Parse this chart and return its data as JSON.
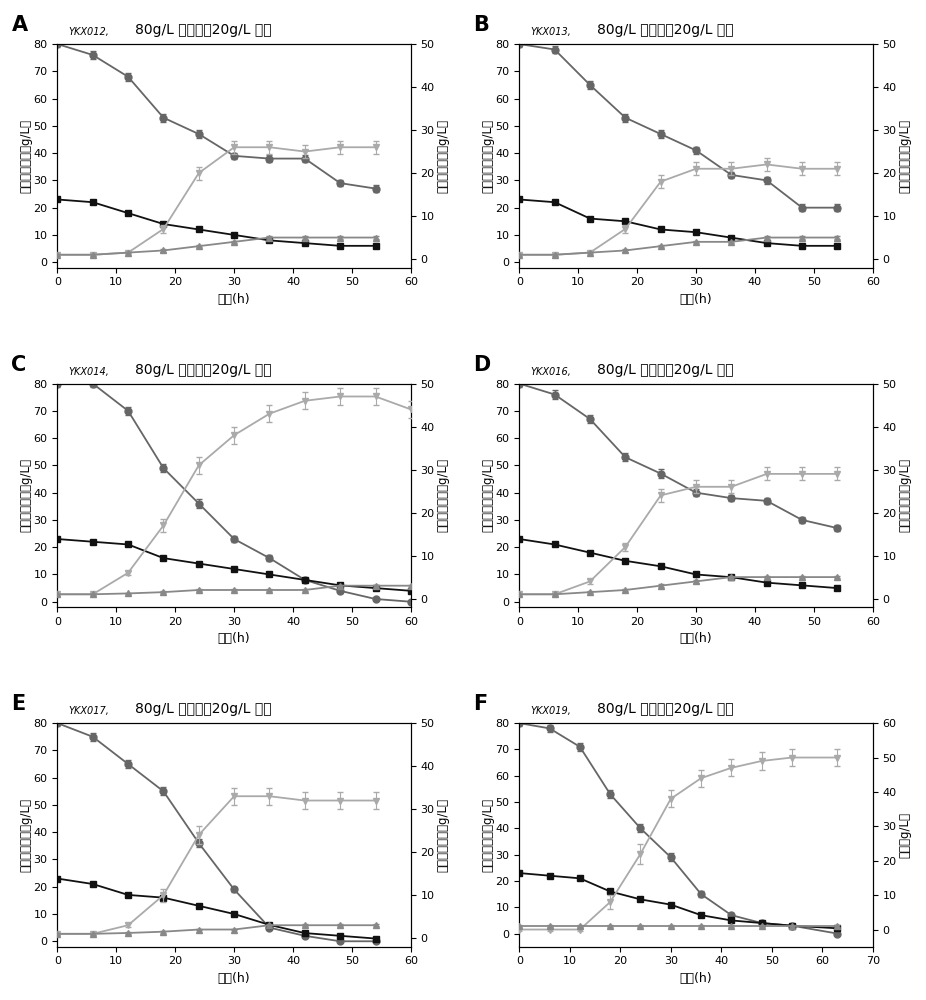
{
  "panels": [
    {
      "label": "A",
      "strain": "YKX012",
      "title": "80g/L 葫萄糖，20g/L 木糖",
      "xlim": [
        0,
        60
      ],
      "ylim_left": [
        -2,
        80
      ],
      "ylim_right": [
        -2,
        50
      ],
      "xticks": [
        0,
        10,
        20,
        30,
        40,
        50,
        60
      ],
      "ylabel_right": "木糖醇，乳糖（g/L）",
      "glucose_x": [
        0,
        6,
        12,
        18,
        24,
        30,
        36,
        42,
        48,
        54
      ],
      "glucose_y": [
        80,
        76,
        68,
        53,
        47,
        39,
        38,
        38,
        29,
        27
      ],
      "glucose_e": [
        1.2,
        1.5,
        1.5,
        1.5,
        1.5,
        1.2,
        1.2,
        1.2,
        1.2,
        1.2
      ],
      "xylose_x": [
        0,
        6,
        12,
        18,
        24,
        30,
        36,
        42,
        48,
        54
      ],
      "xylose_y": [
        23,
        22,
        18,
        14,
        12,
        10,
        8,
        7,
        6,
        6
      ],
      "xylose_e": [
        0.4,
        0.4,
        0.4,
        0.4,
        0.4,
        0.4,
        0.4,
        0.4,
        0.4,
        0.4
      ],
      "xylitol_x": [
        0,
        6,
        12,
        18,
        24,
        30,
        36,
        42,
        48,
        54
      ],
      "xylitol_y": [
        1,
        1,
        1.5,
        7,
        20,
        26,
        26,
        25,
        26,
        26
      ],
      "xylitol_e": [
        0.3,
        0.3,
        0.3,
        1.0,
        1.5,
        1.5,
        1.5,
        1.5,
        1.5,
        1.5
      ],
      "lactic_x": [
        0,
        6,
        12,
        18,
        24,
        30,
        36,
        42,
        48,
        54
      ],
      "lactic_y": [
        1,
        1,
        1.5,
        2,
        3,
        4,
        5,
        5,
        5,
        5
      ],
      "lactic_e": [
        0.2,
        0.2,
        0.2,
        0.3,
        0.3,
        0.3,
        0.3,
        0.3,
        0.3,
        0.3
      ]
    },
    {
      "label": "B",
      "strain": "YKX013",
      "title": "80g/L 葫萄糖，20g/L 木糖",
      "xlim": [
        0,
        60
      ],
      "ylim_left": [
        -2,
        80
      ],
      "ylim_right": [
        -2,
        50
      ],
      "xticks": [
        0,
        10,
        20,
        30,
        40,
        50,
        60
      ],
      "ylabel_right": "木糖醇，乳糖（g/L）",
      "glucose_x": [
        0,
        6,
        12,
        18,
        24,
        30,
        36,
        42,
        48,
        54
      ],
      "glucose_y": [
        80,
        78,
        65,
        53,
        47,
        41,
        32,
        30,
        20,
        20
      ],
      "glucose_e": [
        1.2,
        1.2,
        1.5,
        1.5,
        1.5,
        1.2,
        1.2,
        1.2,
        1.2,
        1.2
      ],
      "xylose_x": [
        0,
        6,
        12,
        18,
        24,
        30,
        36,
        42,
        48,
        54
      ],
      "xylose_y": [
        23,
        22,
        16,
        15,
        12,
        11,
        9,
        7,
        6,
        6
      ],
      "xylose_e": [
        0.4,
        0.4,
        0.4,
        0.4,
        0.4,
        0.4,
        0.4,
        0.4,
        0.4,
        0.4
      ],
      "xylitol_x": [
        0,
        6,
        12,
        18,
        24,
        30,
        36,
        42,
        48,
        54
      ],
      "xylitol_y": [
        1,
        1,
        1.5,
        7,
        18,
        21,
        21,
        22,
        21,
        21
      ],
      "xylitol_e": [
        0.3,
        0.3,
        0.3,
        1.0,
        1.5,
        1.5,
        1.5,
        1.5,
        1.5,
        1.5
      ],
      "lactic_x": [
        0,
        6,
        12,
        18,
        24,
        30,
        36,
        42,
        48,
        54
      ],
      "lactic_y": [
        1,
        1,
        1.5,
        2,
        3,
        4,
        4,
        5,
        5,
        5
      ],
      "lactic_e": [
        0.2,
        0.2,
        0.2,
        0.3,
        0.3,
        0.3,
        0.3,
        0.3,
        0.3,
        0.3
      ]
    },
    {
      "label": "C",
      "strain": "YKX014",
      "title": "80g/L 葫萄糖，20g/L 木糖",
      "xlim": [
        0,
        60
      ],
      "ylim_left": [
        -2,
        80
      ],
      "ylim_right": [
        -2,
        50
      ],
      "xticks": [
        0,
        10,
        20,
        30,
        40,
        50,
        60
      ],
      "ylabel_right": "木糖醇，乳糖（g/L）",
      "glucose_x": [
        0,
        6,
        12,
        18,
        24,
        30,
        36,
        42,
        48,
        54,
        60
      ],
      "glucose_y": [
        80,
        80,
        70,
        49,
        36,
        23,
        16,
        8,
        4,
        1,
        0
      ],
      "glucose_e": [
        1.2,
        1.2,
        1.5,
        1.5,
        1.5,
        1.2,
        1.2,
        0.8,
        0.5,
        0.3,
        0.2
      ],
      "xylose_x": [
        0,
        6,
        12,
        18,
        24,
        30,
        36,
        42,
        48,
        54,
        60
      ],
      "xylose_y": [
        23,
        22,
        21,
        16,
        14,
        12,
        10,
        8,
        6,
        5,
        4
      ],
      "xylose_e": [
        0.4,
        0.4,
        0.4,
        0.4,
        0.4,
        0.4,
        0.4,
        0.4,
        0.4,
        0.4,
        0.4
      ],
      "xylitol_x": [
        0,
        6,
        12,
        18,
        24,
        30,
        36,
        42,
        48,
        54,
        60
      ],
      "xylitol_y": [
        1,
        1,
        6,
        17,
        31,
        38,
        43,
        46,
        47,
        47,
        44
      ],
      "xylitol_e": [
        0.3,
        0.3,
        0.5,
        1.5,
        2.0,
        2.0,
        2.0,
        2.0,
        2.0,
        2.0,
        2.0
      ],
      "lactic_x": [
        0,
        6,
        12,
        18,
        24,
        30,
        36,
        42,
        48,
        54,
        60
      ],
      "lactic_y": [
        1,
        1,
        1.2,
        1.5,
        2,
        2,
        2,
        2,
        3,
        3,
        3
      ],
      "lactic_e": [
        0.2,
        0.2,
        0.2,
        0.2,
        0.2,
        0.2,
        0.2,
        0.2,
        0.2,
        0.2,
        0.2
      ]
    },
    {
      "label": "D",
      "strain": "YKX016",
      "title": "80g/L 葫萄糖，20g/L 木糖",
      "xlim": [
        0,
        60
      ],
      "ylim_left": [
        -2,
        80
      ],
      "ylim_right": [
        -2,
        50
      ],
      "xticks": [
        0,
        10,
        20,
        30,
        40,
        50,
        60
      ],
      "ylabel_right": "木糖醇，乳糖（g/L）",
      "glucose_x": [
        0,
        6,
        12,
        18,
        24,
        30,
        36,
        42,
        48,
        54
      ],
      "glucose_y": [
        80,
        76,
        67,
        53,
        47,
        40,
        38,
        37,
        30,
        27
      ],
      "glucose_e": [
        1.2,
        1.5,
        1.5,
        1.5,
        1.5,
        1.2,
        1.2,
        1.2,
        1.2,
        1.2
      ],
      "xylose_x": [
        0,
        6,
        12,
        18,
        24,
        30,
        36,
        42,
        48,
        54
      ],
      "xylose_y": [
        23,
        21,
        18,
        15,
        13,
        10,
        9,
        7,
        6,
        5
      ],
      "xylose_e": [
        0.4,
        0.4,
        0.4,
        0.4,
        0.4,
        0.4,
        0.4,
        0.4,
        0.4,
        0.4
      ],
      "xylitol_x": [
        0,
        6,
        12,
        18,
        24,
        30,
        36,
        42,
        48,
        54
      ],
      "xylitol_y": [
        1,
        1,
        4,
        12,
        24,
        26,
        26,
        29,
        29,
        29
      ],
      "xylitol_e": [
        0.3,
        0.3,
        0.5,
        1.0,
        1.5,
        1.5,
        1.5,
        1.5,
        1.5,
        1.5
      ],
      "lactic_x": [
        0,
        6,
        12,
        18,
        24,
        30,
        36,
        42,
        48,
        54
      ],
      "lactic_y": [
        1,
        1,
        1.5,
        2,
        3,
        4,
        5,
        5,
        5,
        5
      ],
      "lactic_e": [
        0.2,
        0.2,
        0.2,
        0.3,
        0.3,
        0.3,
        0.3,
        0.3,
        0.3,
        0.3
      ]
    },
    {
      "label": "E",
      "strain": "YKX017",
      "title": "80g/L 葫萄糖，20g/L 木糖",
      "xlim": [
        0,
        60
      ],
      "ylim_left": [
        -2,
        80
      ],
      "ylim_right": [
        -2,
        50
      ],
      "xticks": [
        0,
        10,
        20,
        30,
        40,
        50,
        60
      ],
      "ylabel_right": "木糖醇，乳糖（g/L）",
      "glucose_x": [
        0,
        6,
        12,
        18,
        24,
        30,
        36,
        42,
        48,
        54
      ],
      "glucose_y": [
        80,
        75,
        65,
        55,
        36,
        19,
        5,
        2,
        0,
        0
      ],
      "glucose_e": [
        1.2,
        1.5,
        1.5,
        1.5,
        1.5,
        0.8,
        0.4,
        0.3,
        0.2,
        0.2
      ],
      "xylose_x": [
        0,
        6,
        12,
        18,
        24,
        30,
        36,
        42,
        48,
        54
      ],
      "xylose_y": [
        23,
        21,
        17,
        16,
        13,
        10,
        6,
        3,
        2,
        1
      ],
      "xylose_e": [
        0.4,
        0.4,
        0.4,
        0.4,
        0.4,
        0.4,
        0.3,
        0.3,
        0.3,
        0.3
      ],
      "xylitol_x": [
        0,
        6,
        12,
        18,
        24,
        30,
        36,
        42,
        48,
        54
      ],
      "xylitol_y": [
        1,
        1,
        3,
        10,
        24,
        33,
        33,
        32,
        32,
        32
      ],
      "xylitol_e": [
        0.3,
        0.3,
        0.5,
        1.5,
        2.0,
        2.0,
        2.0,
        2.0,
        2.0,
        2.0
      ],
      "lactic_x": [
        0,
        6,
        12,
        18,
        24,
        30,
        36,
        42,
        48,
        54
      ],
      "lactic_y": [
        1,
        1,
        1.2,
        1.5,
        2,
        2,
        3,
        3,
        3,
        3
      ],
      "lactic_e": [
        0.2,
        0.2,
        0.2,
        0.2,
        0.2,
        0.2,
        0.2,
        0.2,
        0.2,
        0.2
      ]
    },
    {
      "label": "F",
      "strain": "YKX019",
      "title": "80g/L 葫萄糖，20g/L 木糖",
      "xlim": [
        0,
        70
      ],
      "ylim_left": [
        -5,
        80
      ],
      "ylim_right": [
        -5,
        60
      ],
      "xticks": [
        0,
        10,
        20,
        30,
        40,
        50,
        60,
        70
      ],
      "ylabel_right": "乳糖（g/L）",
      "glucose_x": [
        0,
        6,
        12,
        18,
        24,
        30,
        36,
        42,
        48,
        54,
        63
      ],
      "glucose_y": [
        80,
        78,
        71,
        53,
        40,
        29,
        15,
        7,
        4,
        3,
        0
      ],
      "glucose_e": [
        1.2,
        1.2,
        1.5,
        1.5,
        1.5,
        1.5,
        1.2,
        0.8,
        0.5,
        0.3,
        0.2
      ],
      "xylose_x": [
        0,
        6,
        12,
        18,
        24,
        30,
        36,
        42,
        48,
        54,
        63
      ],
      "xylose_y": [
        23,
        22,
        21,
        16,
        13,
        11,
        7,
        5,
        4,
        3,
        2
      ],
      "xylose_e": [
        0.4,
        0.4,
        0.4,
        0.4,
        0.4,
        0.4,
        0.3,
        0.3,
        0.3,
        0.3,
        0.3
      ],
      "xylitol_x": [
        0,
        6,
        12,
        18,
        24,
        30,
        36,
        42,
        48,
        54,
        63
      ],
      "xylitol_y": [
        0,
        0,
        0,
        8,
        22,
        38,
        44,
        47,
        49,
        50,
        50
      ],
      "xylitol_e": [
        0.3,
        0.3,
        0.3,
        2.0,
        3.0,
        2.5,
        2.5,
        2.5,
        2.5,
        2.5,
        2.5
      ],
      "lactic_x": [
        0,
        6,
        12,
        18,
        24,
        30,
        36,
        42,
        48,
        54,
        63
      ],
      "lactic_y": [
        1,
        1,
        1,
        1,
        1,
        1,
        1,
        1,
        1,
        1,
        1
      ],
      "lactic_e": [
        0.2,
        0.2,
        0.2,
        0.2,
        0.2,
        0.2,
        0.2,
        0.2,
        0.2,
        0.2,
        0.2
      ]
    }
  ],
  "ylabel_left": "葫萄糖，木糖（g/L）",
  "xlabel": "时间(h)",
  "c_glucose": "#666666",
  "c_xylose": "#111111",
  "c_xylitol": "#aaaaaa",
  "c_lactic": "#888888"
}
